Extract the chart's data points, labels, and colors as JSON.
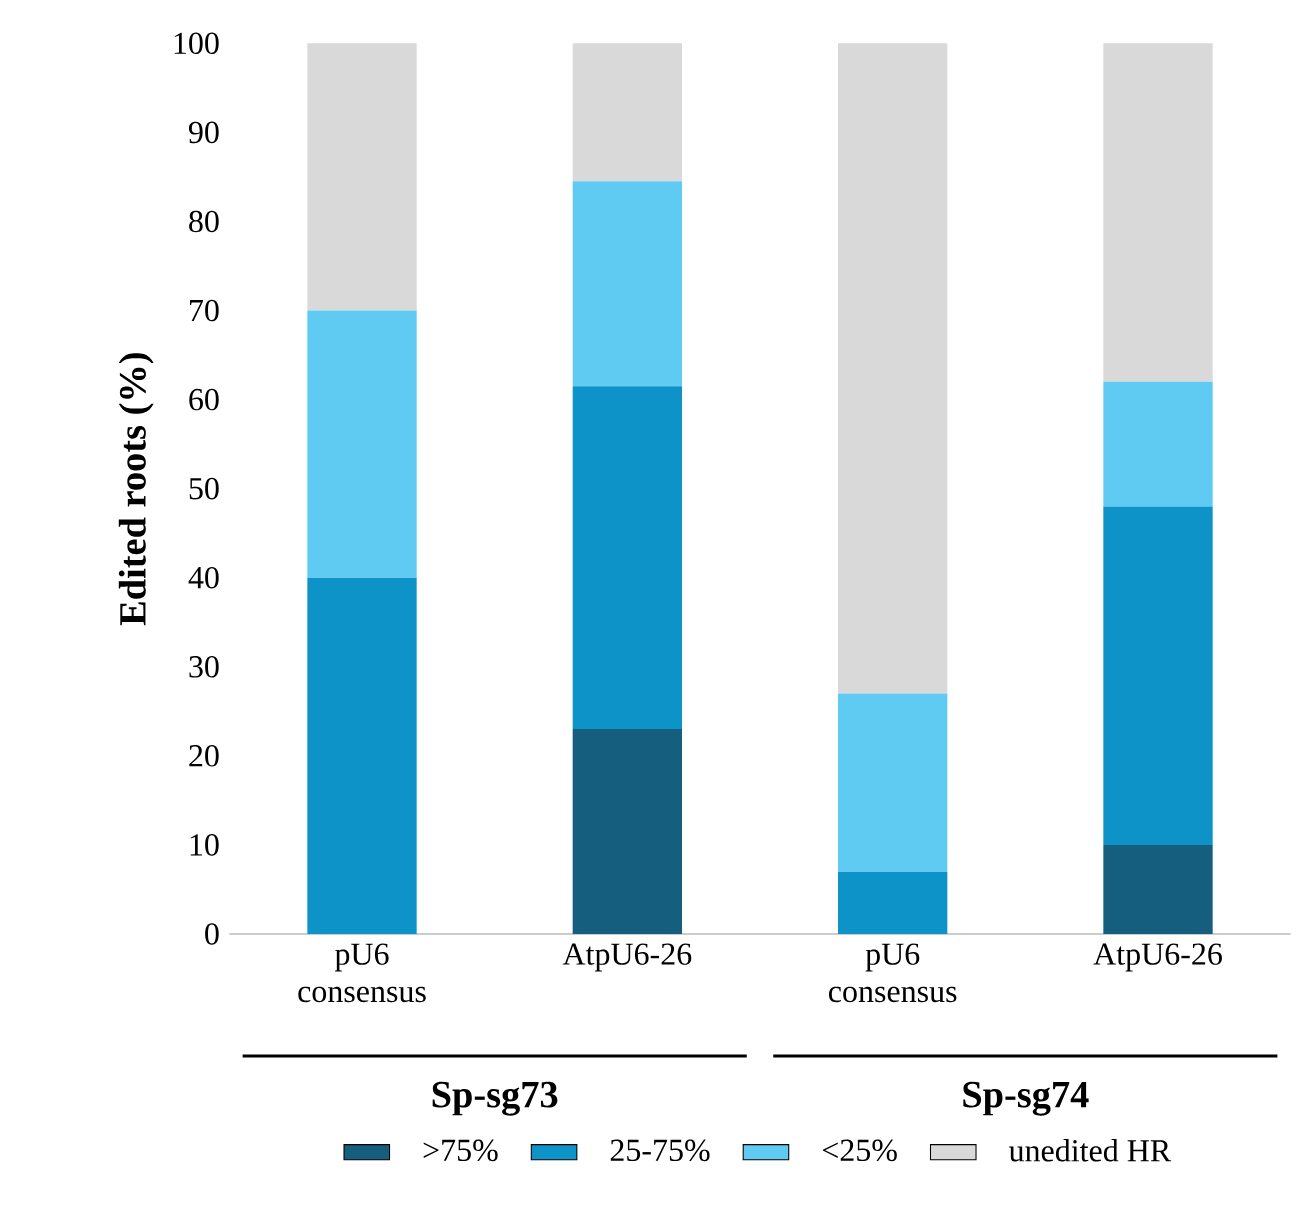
{
  "chart_data": {
    "type": "bar",
    "stacked": true,
    "ylabel": "Edited roots (%)",
    "categories": [
      "pU6 consensus",
      "AtpU6-26",
      "pU6 consensus",
      "AtpU6-26"
    ],
    "series": [
      {
        "name": ">75%",
        "color": "#155e7e",
        "values": [
          0,
          23,
          0,
          10
        ]
      },
      {
        "name": "25-75%",
        "color": "#0e93c8",
        "values": [
          40,
          38.5,
          7,
          38
        ]
      },
      {
        "name": "<25%",
        "color": "#5fcbf3",
        "values": [
          30,
          23,
          20,
          14
        ]
      },
      {
        "name": "unedited HR",
        "color": "#d9d9d9",
        "values": [
          30,
          15.5,
          73,
          38
        ]
      }
    ],
    "ylim": [
      0,
      100
    ],
    "yticks": [
      0,
      10,
      20,
      30,
      40,
      50,
      60,
      70,
      80,
      90,
      100
    ],
    "grid": false,
    "legend": "bottom",
    "annotations": [
      "Sp-sg73",
      "Sp-sg74"
    ]
  }
}
